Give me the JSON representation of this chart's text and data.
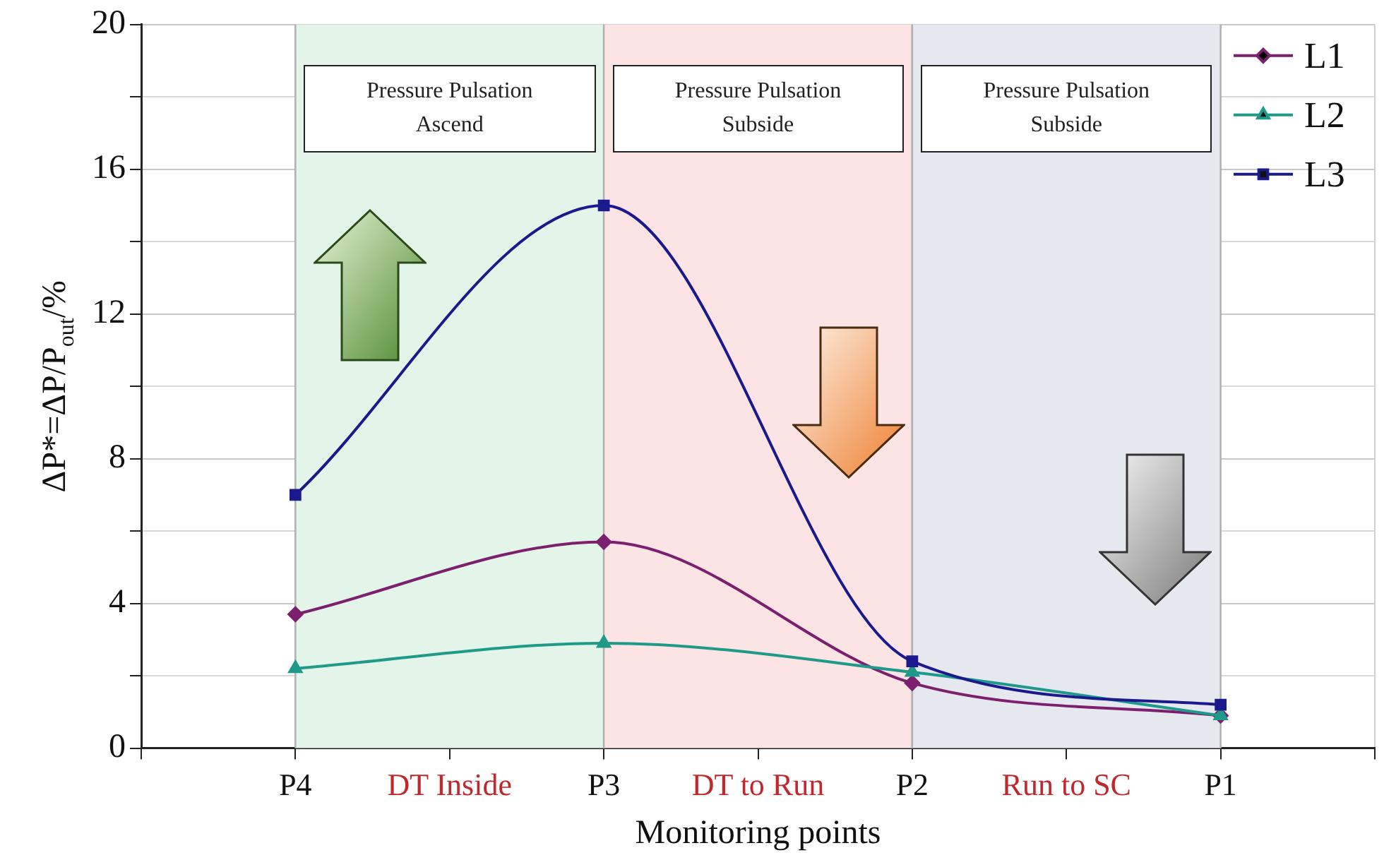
{
  "chart_data": {
    "type": "line",
    "xlabel": "Monitoring points",
    "ylabel": "ΔP*=ΔP/P$_{out}$/%",
    "categories": [
      null,
      "P4",
      "DT Inside",
      "P3",
      "DT to Run",
      "P2",
      "Run to SC",
      "P1",
      null
    ],
    "series": [
      {
        "name": "L1",
        "color": "#7b1f6e",
        "marker": "diamond",
        "values": [
          null,
          3.7,
          null,
          5.7,
          null,
          1.8,
          null,
          0.9,
          null
        ]
      },
      {
        "name": "L2",
        "color": "#1f9a8a",
        "marker": "triangle",
        "values": [
          null,
          2.2,
          null,
          2.9,
          null,
          2.1,
          null,
          0.9,
          null
        ]
      },
      {
        "name": "L3",
        "color": "#1a1a8c",
        "marker": "square",
        "values": [
          null,
          7.0,
          null,
          15.0,
          null,
          2.4,
          null,
          1.2,
          null
        ]
      }
    ],
    "ylim": [
      0,
      20
    ],
    "yticks": [
      0,
      {
        "value": 2,
        "label": null
      },
      4,
      {
        "value": 6,
        "label": null
      },
      8,
      {
        "value": 10,
        "label": null
      },
      12,
      {
        "value": 14,
        "label": null
      },
      16,
      {
        "value": 18,
        "label": null
      },
      20
    ],
    "bands": [
      {
        "axis": "x",
        "from": "P4",
        "to": "P3",
        "label": "Pressure Pulsation Ascend",
        "color": "#e3f5e8"
      },
      {
        "axis": "x",
        "from": "P3",
        "to": "P2",
        "label": "Pressure Pulsation Subside",
        "color": "#fde4e4"
      },
      {
        "axis": "x",
        "from": "P2",
        "to": "P1",
        "label": "Pressure Pulsation Subside",
        "color": "#e6e8f0"
      }
    ],
    "grid": true,
    "legend": "top right",
    "line_style": "solid"
  }
}
